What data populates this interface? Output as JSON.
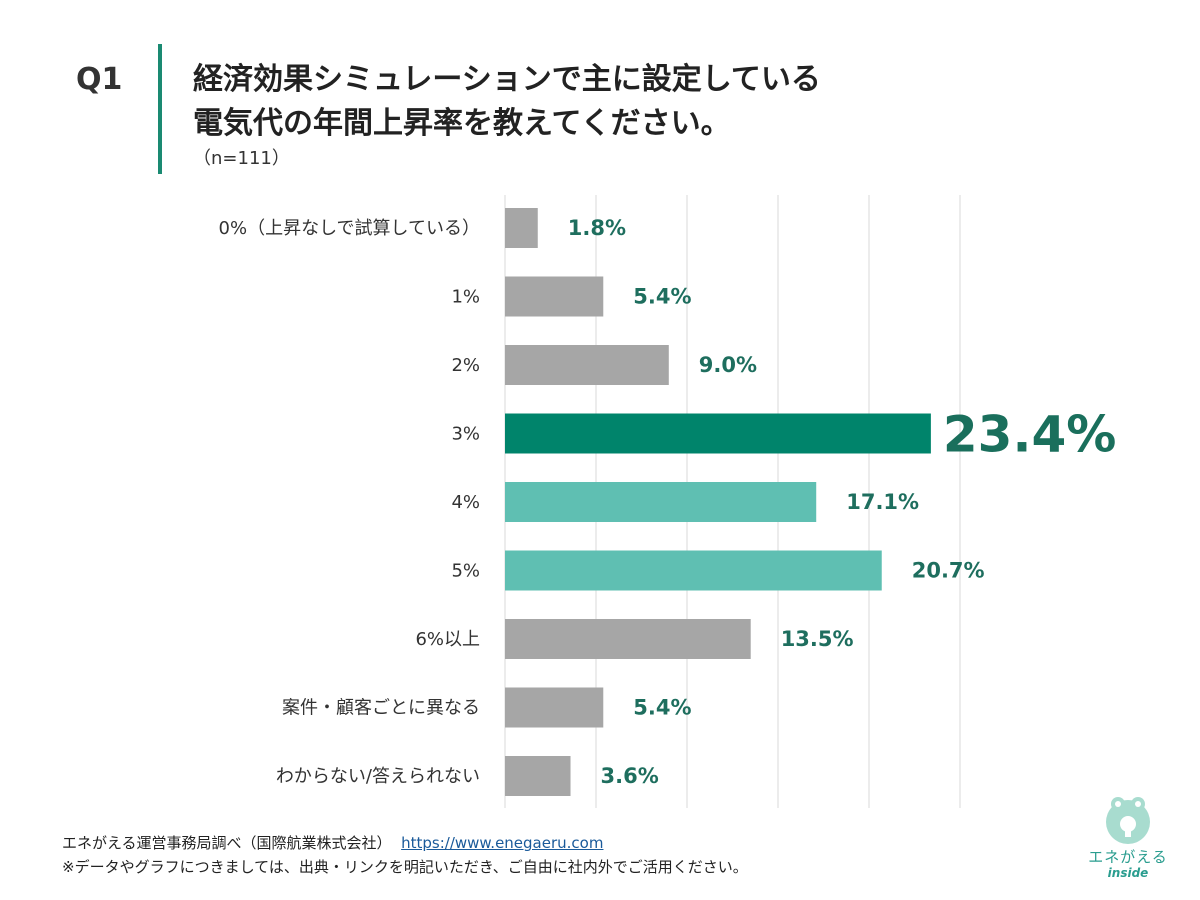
{
  "header": {
    "question_number": "Q1",
    "title_line1": "経済効果シミュレーションで主に設定している",
    "title_line2": "電気代の年間上昇率を教えてください。",
    "sample": "（n=111）"
  },
  "chart_data": {
    "type": "bar",
    "orientation": "horizontal",
    "categories": [
      "0%（上昇なしで試算している）",
      "1%",
      "2%",
      "3%",
      "4%",
      "5%",
      "6%以上",
      "案件・顧客ごとに異なる",
      "わからない/答えられない"
    ],
    "values": [
      1.8,
      5.4,
      9.0,
      23.4,
      17.1,
      20.7,
      13.5,
      5.4,
      3.6
    ],
    "value_labels": [
      "1.8%",
      "5.4%",
      "9.0%",
      "23.4%",
      "17.1%",
      "20.7%",
      "13.5%",
      "5.4%",
      "3.6%"
    ],
    "bar_colors": [
      "#a6a6a6",
      "#a6a6a6",
      "#a6a6a6",
      "#00846b",
      "#5fbfb2",
      "#5fbfb2",
      "#a6a6a6",
      "#a6a6a6",
      "#a6a6a6"
    ],
    "highlight_index": 3,
    "xlim": [
      0,
      25
    ],
    "grid": true,
    "label_color": "#1e6e5e",
    "highlight_label_color": "#1a6f5c"
  },
  "footer": {
    "source": "エネがえる運営事務局調べ（国際航業株式会社）",
    "url": "https://www.enegaeru.com",
    "note": "※データやグラフにつきましては、出典・リンクを明記いただき、ご自由に社内外でご活用ください。"
  },
  "logo": {
    "name": "エネがえる",
    "sub": "inside",
    "color": "#2a9d8f"
  }
}
